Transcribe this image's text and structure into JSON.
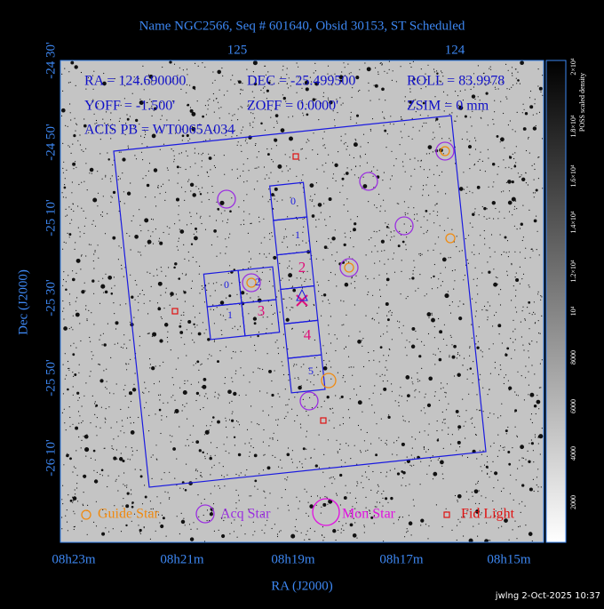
{
  "header": {
    "title": "Name NGC2566, Seq # 601640, Obsid 30153, ST Scheduled"
  },
  "info": {
    "rows": [
      [
        "RA = 124.690000",
        "DEC = -25.499500",
        "ROLL = 83.9978"
      ],
      [
        "YOFF = -1.500'",
        "ZOFF = 0.0000'",
        "ZSIM = 0 mm"
      ],
      [
        "ACIS PB = WT0065A034"
      ]
    ]
  },
  "axes": {
    "x_label": "RA (J2000)",
    "y_label": "Dec (J2000)",
    "top_ticks": [
      "125",
      "124"
    ],
    "bottom_ticks": [
      "08h23m",
      "08h21m",
      "08h19m",
      "08h17m",
      "08h15m"
    ],
    "left_ticks": [
      "-24 30'",
      "-24 50'",
      "-25 10'",
      "-25 30'",
      "-25 50'",
      "-26 10'"
    ]
  },
  "chips": {
    "acis_s": [
      "0",
      "1",
      "2",
      "4",
      "5"
    ],
    "acis_i": [
      "0",
      "2",
      "1",
      "3"
    ]
  },
  "legend": [
    "Guide Star",
    "Acq Star",
    "Mon Star",
    "Fid Light"
  ],
  "colorbar": {
    "label": "POSS scaled density",
    "ticks": [
      "2×10⁴",
      "1.8×10⁴",
      "1.6×10⁴",
      "1.4×10⁴",
      "1.2×10⁴",
      "10⁴",
      "8000",
      "6000",
      "4000",
      "2000"
    ]
  },
  "footer": "jwlng  2-Oct-2025 10:37"
}
